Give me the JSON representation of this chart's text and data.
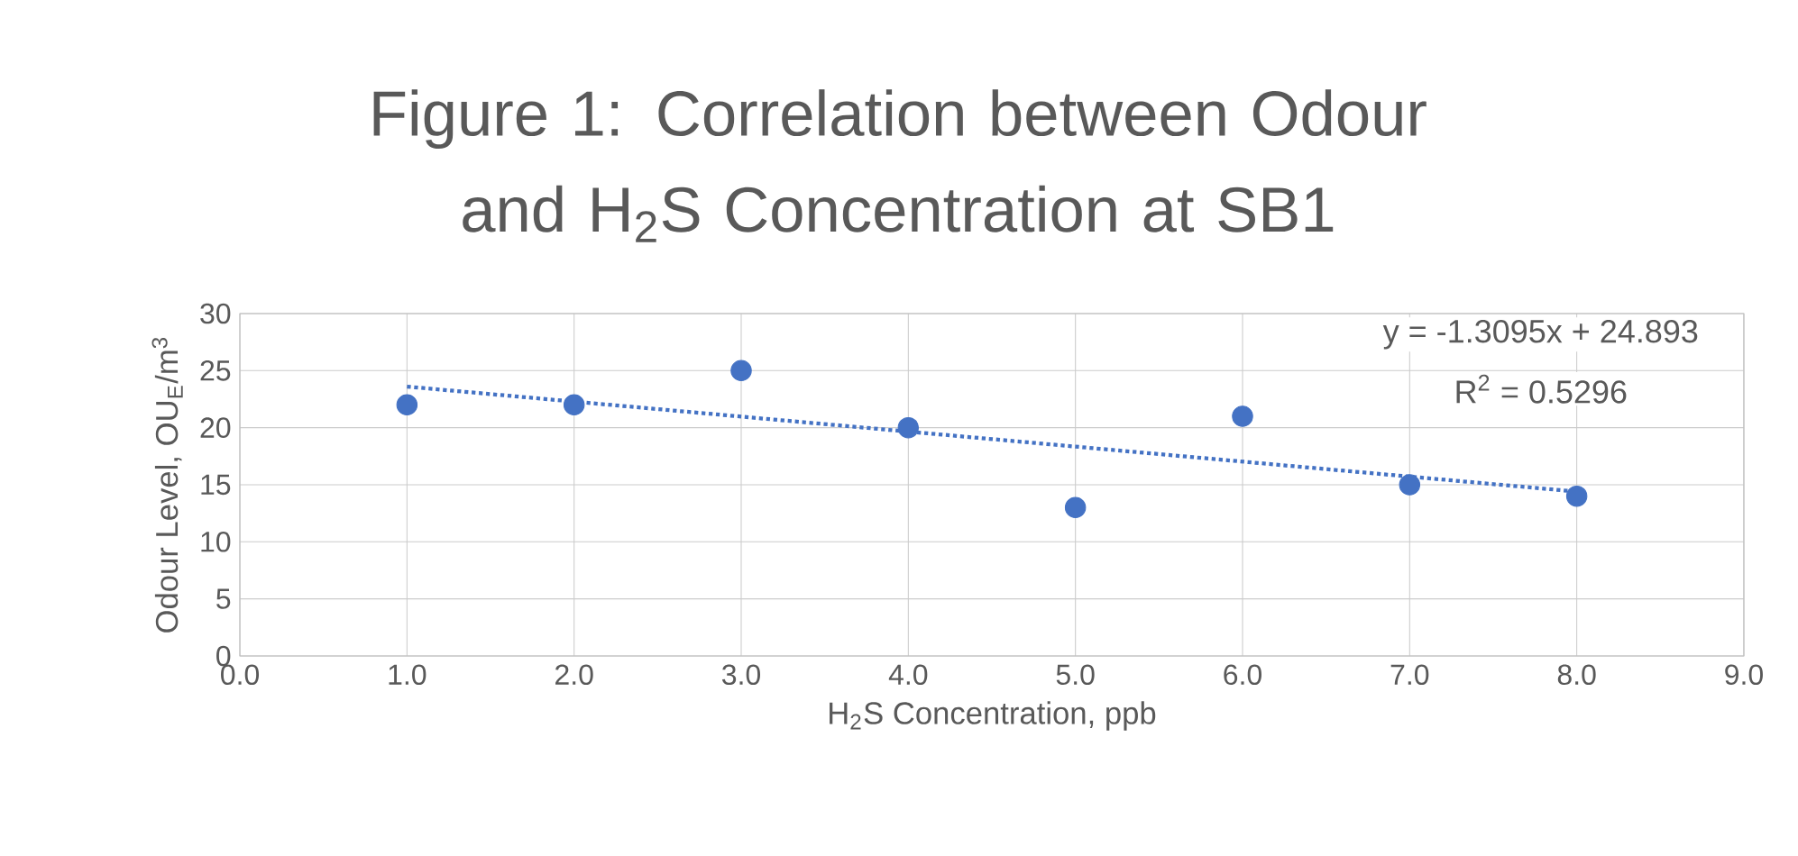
{
  "chart_data": {
    "type": "scatter",
    "title": "Figure 1: Correlation between Odour and H$_{2}$S Concentration at SB1",
    "xlabel": "H$_{2}$S Concentration, ppb",
    "ylabel": "Odour Level, OU$_{E}$/m$^{3}$",
    "annotations": [
      "y = -1.3095x + 24.893",
      "R$^{2}$ = 0.5296"
    ],
    "series": [
      {
        "color": "#4472c4",
        "marker": "circle",
        "x": [
          1,
          2,
          3,
          4,
          5,
          6,
          7,
          8
        ],
        "values": [
          22,
          22,
          25,
          20,
          13,
          21,
          15,
          14
        ]
      },
      {
        "type": "line",
        "color": "#4472c4",
        "marker": "none",
        "line_style": "dotted",
        "x": [
          1,
          8
        ],
        "values": [
          23.6,
          14.4
        ]
      }
    ],
    "xlim": [
      0,
      9
    ],
    "ylim": [
      0,
      30
    ],
    "xticks": [
      {
        "value": 0,
        "label": "0.0"
      },
      {
        "value": 1,
        "label": "1.0"
      },
      {
        "value": 2,
        "label": "2.0"
      },
      {
        "value": 3,
        "label": "3.0"
      },
      {
        "value": 4,
        "label": "4.0"
      },
      {
        "value": 5,
        "label": "5.0"
      },
      {
        "value": 6,
        "label": "6.0"
      },
      {
        "value": 7,
        "label": "7.0"
      },
      {
        "value": 8,
        "label": "8.0"
      },
      {
        "value": 9,
        "label": "9.0"
      }
    ],
    "yticks": [
      0,
      5,
      10,
      15,
      20,
      25,
      30
    ],
    "grid": true
  }
}
